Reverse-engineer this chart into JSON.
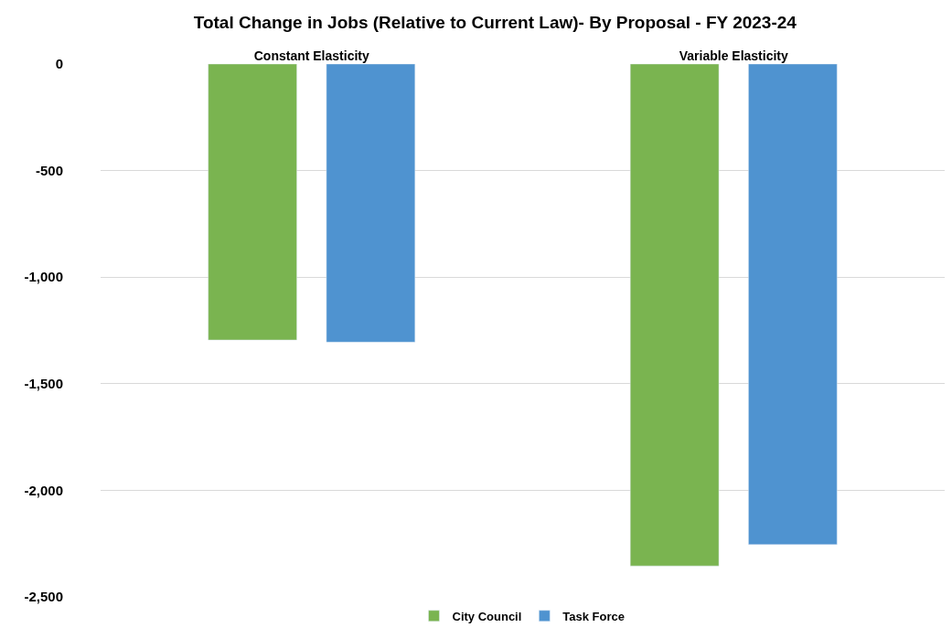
{
  "chart_data": {
    "type": "bar",
    "title": "Total Change in Jobs (Relative to Current Law)- By Proposal - FY 2023-24",
    "categories": [
      "Constant Elasticity",
      "Variable Elasticity"
    ],
    "series": [
      {
        "name": "City Council",
        "color": "#7ab450",
        "values": [
          -1295,
          -2355
        ]
      },
      {
        "name": "Task Force",
        "color": "#4f93d0",
        "values": [
          -1305,
          -2255
        ]
      }
    ],
    "ylim": [
      -2500,
      0
    ],
    "yticks": [
      {
        "value": 0,
        "label": "0"
      },
      {
        "value": -500,
        "label": "-500"
      },
      {
        "value": -1000,
        "label": "-1,000"
      },
      {
        "value": -1500,
        "label": "-1,500"
      },
      {
        "value": -2000,
        "label": "-2,000"
      },
      {
        "value": -2500,
        "label": "-2,500"
      }
    ],
    "grid": "y",
    "legend": "bottom"
  }
}
